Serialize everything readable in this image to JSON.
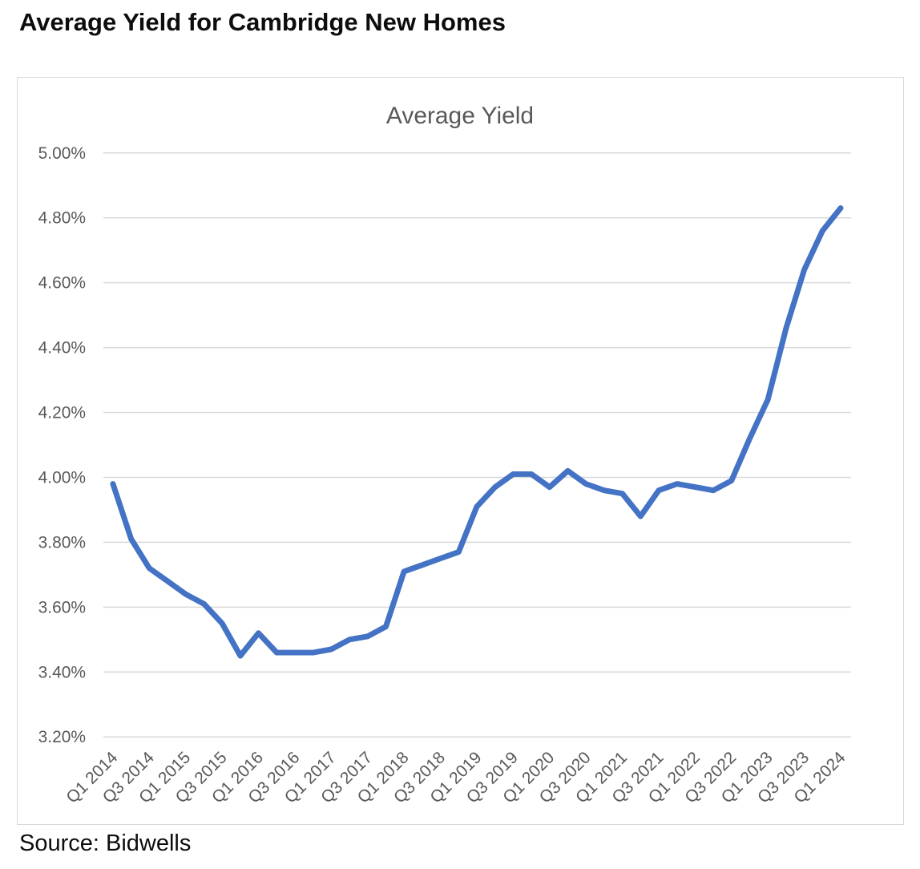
{
  "page": {
    "title": "Average Yield for Cambridge New Homes",
    "source": "Source: Bidwells"
  },
  "chart_data": {
    "type": "line",
    "title": "Average Yield",
    "xlabel": "",
    "ylabel": "",
    "legend": "none",
    "grid": "horizontal",
    "ylim": [
      3.2,
      5.0
    ],
    "y_ticks": [
      5.0,
      4.8,
      4.6,
      4.4,
      4.2,
      4.0,
      3.8,
      3.6,
      3.4,
      3.2
    ],
    "y_tick_labels": [
      "5.00%",
      "4.80%",
      "4.60%",
      "4.40%",
      "4.20%",
      "4.00%",
      "3.80%",
      "3.60%",
      "3.40%",
      "3.20%"
    ],
    "x_tick_labels": [
      "Q1 2014",
      "Q3 2014",
      "Q1 2015",
      "Q3 2015",
      "Q1 2016",
      "Q3 2016",
      "Q1 2017",
      "Q3 2017",
      "Q1 2018",
      "Q3 2018",
      "Q1 2019",
      "Q3 2019",
      "Q1 2020",
      "Q3 2020",
      "Q1 2021",
      "Q3 2021",
      "Q1 2022",
      "Q3 2022",
      "Q1 2023",
      "Q3 2023",
      "Q1 2024"
    ],
    "categories": [
      "Q1 2014",
      "Q2 2014",
      "Q3 2014",
      "Q4 2014",
      "Q1 2015",
      "Q2 2015",
      "Q3 2015",
      "Q4 2015",
      "Q1 2016",
      "Q2 2016",
      "Q3 2016",
      "Q4 2016",
      "Q1 2017",
      "Q2 2017",
      "Q3 2017",
      "Q4 2017",
      "Q1 2018",
      "Q2 2018",
      "Q3 2018",
      "Q4 2018",
      "Q1 2019",
      "Q2 2019",
      "Q3 2019",
      "Q4 2019",
      "Q1 2020",
      "Q2 2020",
      "Q3 2020",
      "Q4 2020",
      "Q1 2021",
      "Q2 2021",
      "Q3 2021",
      "Q4 2021",
      "Q1 2022",
      "Q2 2022",
      "Q3 2022",
      "Q4 2022",
      "Q1 2023",
      "Q2 2023",
      "Q3 2023",
      "Q4 2023",
      "Q1 2024"
    ],
    "series": [
      {
        "name": "Average Yield",
        "values": [
          3.98,
          3.81,
          3.72,
          3.68,
          3.64,
          3.61,
          3.55,
          3.45,
          3.52,
          3.46,
          3.46,
          3.46,
          3.47,
          3.5,
          3.51,
          3.54,
          3.71,
          3.73,
          3.75,
          3.77,
          3.91,
          3.97,
          4.01,
          4.01,
          3.97,
          4.02,
          3.98,
          3.96,
          3.95,
          3.88,
          3.96,
          3.98,
          3.97,
          3.96,
          3.99,
          4.12,
          4.24,
          4.46,
          4.64,
          4.76,
          4.83
        ]
      }
    ],
    "colors": {
      "line": "#4472C4",
      "gridline": "#d9d9d9",
      "axis_text": "#595959",
      "title_text": "#595959"
    }
  }
}
